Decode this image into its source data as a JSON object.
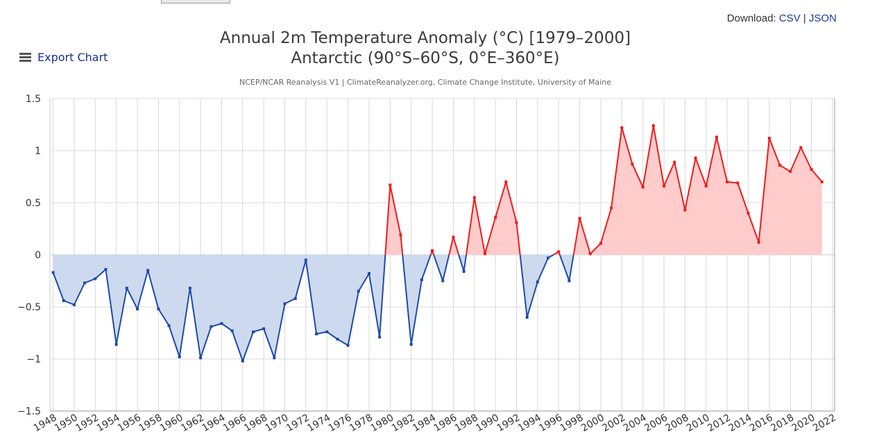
{
  "download": {
    "label": "Download:",
    "csv": "CSV",
    "separator": "|",
    "json": "JSON"
  },
  "export": {
    "label": "Export Chart"
  },
  "colors": {
    "below": "#1d4ba8",
    "below_fill": "#cdd9ee",
    "above": "#ee1c1c",
    "above_fill": "#ffcccc",
    "grid": "#d8d8d8"
  },
  "chart_data": {
    "type": "area",
    "title": "Annual 2m Temperature Anomaly (°C) [1979–2000]",
    "subtitle": "Antarctic (90°S–60°S, 0°E–360°E)",
    "credit": "NCEP/NCAR Reanalysis V1 | ClimateReanalyzer.org, Climate Change Institute, University of Maine",
    "xlabel": "",
    "ylabel": "",
    "xlim": [
      1947,
      2022
    ],
    "ylim": [
      -1.5,
      1.5
    ],
    "yticks": [
      -1.5,
      -1,
      -0.5,
      0,
      0.5,
      1,
      1.5
    ],
    "ytick_labels": [
      "−1.5",
      "−1",
      "−0.5",
      "0",
      "0.5",
      "1",
      "1.5"
    ],
    "xticks": [
      1948,
      1950,
      1952,
      1954,
      1956,
      1958,
      1960,
      1962,
      1964,
      1966,
      1968,
      1970,
      1972,
      1974,
      1976,
      1978,
      1980,
      1982,
      1984,
      1986,
      1988,
      1990,
      1992,
      1994,
      1996,
      1998,
      2000,
      2002,
      2004,
      2006,
      2008,
      2010,
      2012,
      2014,
      2016,
      2018,
      2020,
      2022
    ],
    "grid": true,
    "x": [
      1948,
      1949,
      1950,
      1951,
      1952,
      1953,
      1954,
      1955,
      1956,
      1957,
      1958,
      1959,
      1960,
      1961,
      1962,
      1963,
      1964,
      1965,
      1966,
      1967,
      1968,
      1969,
      1970,
      1971,
      1972,
      1973,
      1974,
      1975,
      1976,
      1977,
      1978,
      1979,
      1980,
      1981,
      1982,
      1983,
      1984,
      1985,
      1986,
      1987,
      1988,
      1989,
      1990,
      1991,
      1992,
      1993,
      1994,
      1995,
      1996,
      1997,
      1998,
      1999,
      2000,
      2001,
      2002,
      2003,
      2004,
      2005,
      2006,
      2007,
      2008,
      2009,
      2010,
      2011,
      2012,
      2013,
      2014,
      2015,
      2016,
      2017,
      2018,
      2019,
      2020,
      2021
    ],
    "values": [
      -0.17,
      -0.44,
      -0.48,
      -0.27,
      -0.23,
      -0.14,
      -0.86,
      -0.32,
      -0.52,
      -0.15,
      -0.52,
      -0.68,
      -0.98,
      -0.32,
      -0.99,
      -0.69,
      -0.66,
      -0.73,
      -1.02,
      -0.74,
      -0.71,
      -0.99,
      -0.47,
      -0.42,
      -0.05,
      -0.76,
      -0.74,
      -0.81,
      -0.87,
      -0.35,
      -0.18,
      -0.79,
      0.67,
      0.19,
      -0.86,
      -0.24,
      0.04,
      -0.25,
      0.17,
      -0.16,
      0.55,
      0.01,
      0.36,
      0.7,
      0.31,
      -0.6,
      -0.26,
      -0.03,
      0.03,
      -0.25,
      0.35,
      0.01,
      0.11,
      0.45,
      1.22,
      0.87,
      0.65,
      1.24,
      0.66,
      0.89,
      0.43,
      0.93,
      0.66,
      1.13,
      0.7,
      0.69,
      0.4,
      0.12,
      1.12,
      0.86,
      0.8,
      1.03,
      0.82,
      0.7
    ]
  }
}
